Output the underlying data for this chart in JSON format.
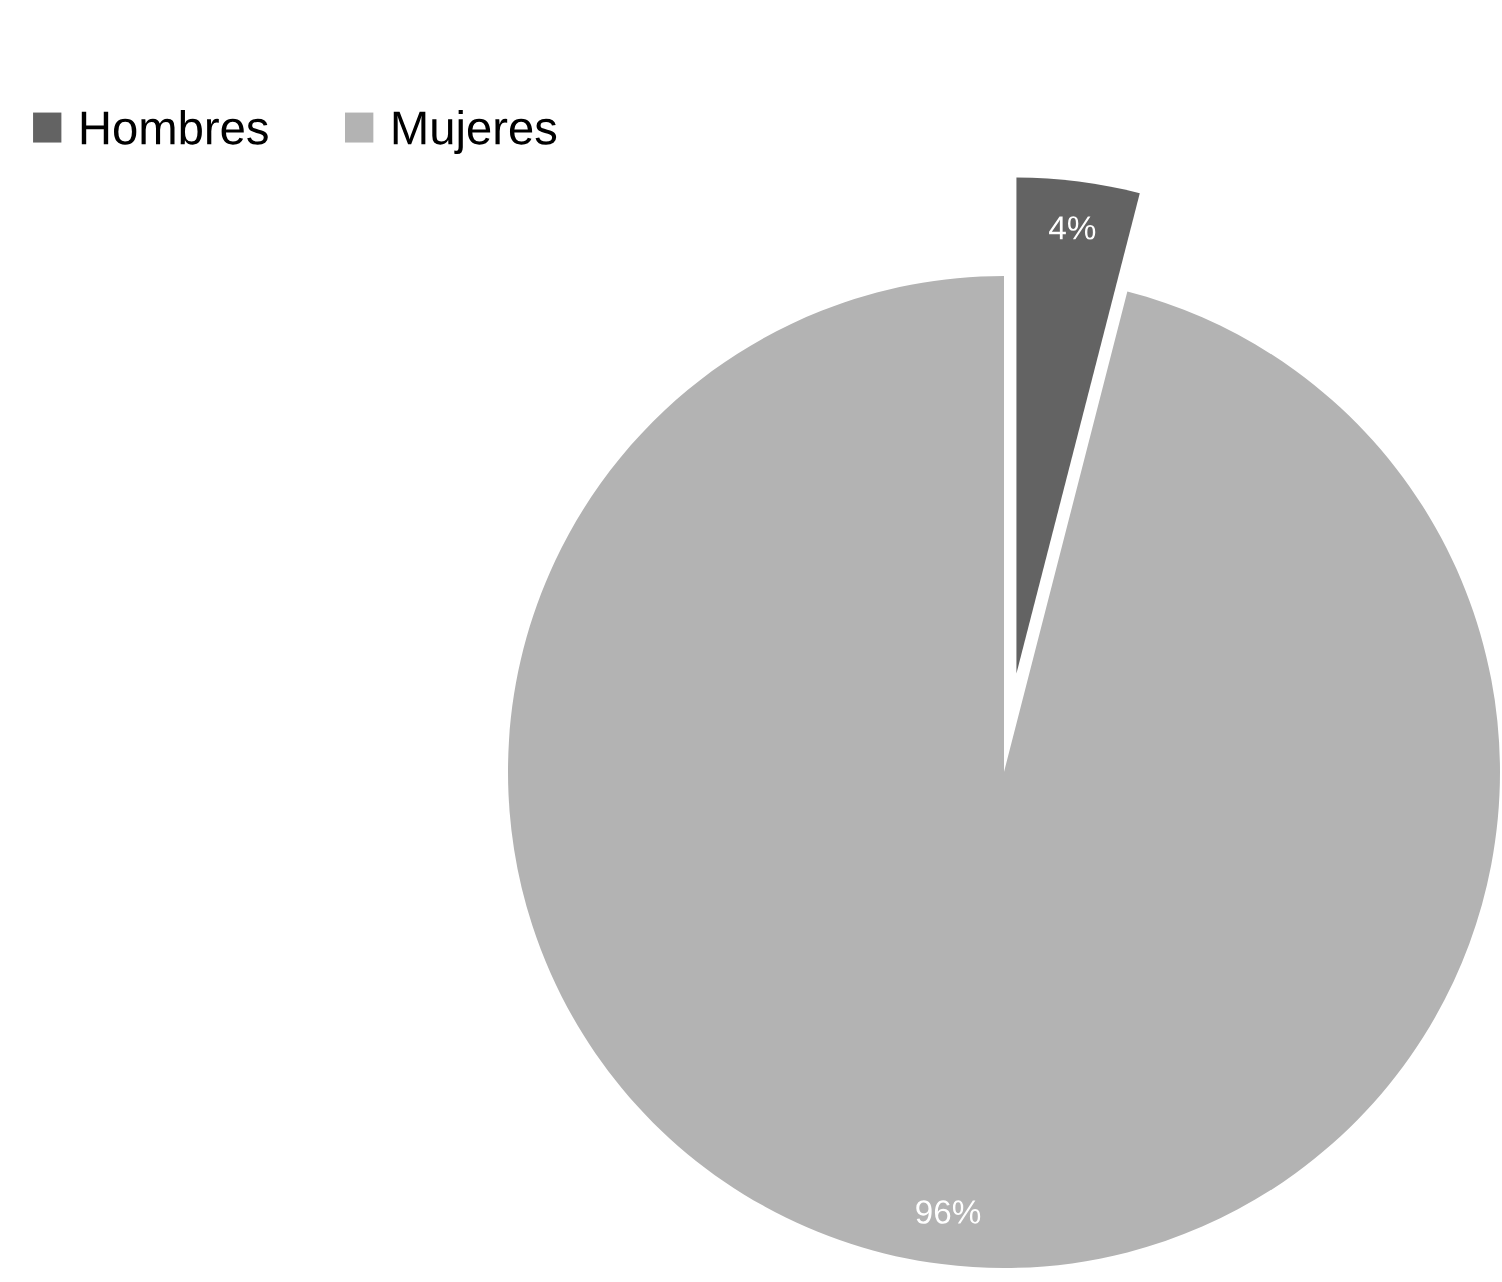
{
  "chart_data": {
    "type": "pie",
    "categories": [
      "Hombres",
      "Mujeres"
    ],
    "values": [
      4,
      96
    ],
    "colors": [
      "#636363",
      "#b3b3b3"
    ],
    "value_labels": [
      "4%",
      "96%"
    ],
    "legend": "top left"
  }
}
